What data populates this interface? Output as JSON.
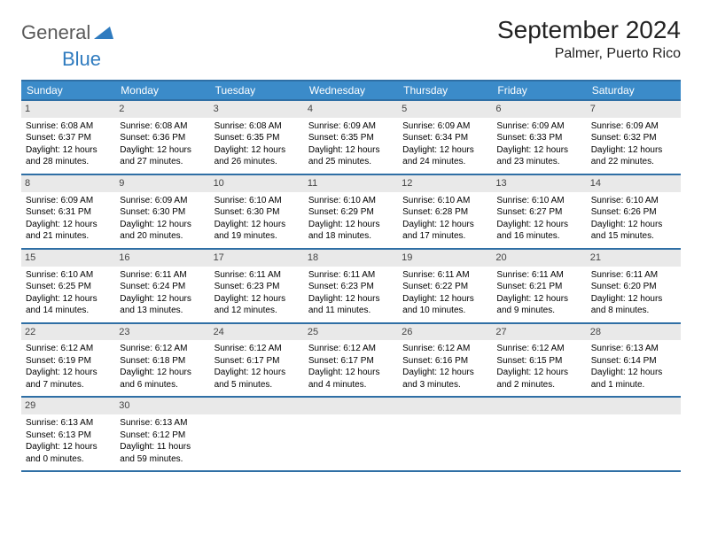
{
  "logo": {
    "text1": "General",
    "text2": "Blue"
  },
  "title": "September 2024",
  "location": "Palmer, Puerto Rico",
  "colors": {
    "header_bg": "#3b8bc9",
    "border": "#2f6fa5",
    "daynum_bg": "#e9e9e9",
    "logo_gray": "#5a5a5a",
    "logo_blue": "#2f7bbf"
  },
  "fonts": {
    "title_size": 28,
    "location_size": 16,
    "dow_size": 12,
    "cell_size": 10
  },
  "days_of_week": [
    "Sunday",
    "Monday",
    "Tuesday",
    "Wednesday",
    "Thursday",
    "Friday",
    "Saturday"
  ],
  "weeks": [
    [
      {
        "n": "1",
        "sr": "6:08 AM",
        "ss": "6:37 PM",
        "dl": "12 hours and 28 minutes."
      },
      {
        "n": "2",
        "sr": "6:08 AM",
        "ss": "6:36 PM",
        "dl": "12 hours and 27 minutes."
      },
      {
        "n": "3",
        "sr": "6:08 AM",
        "ss": "6:35 PM",
        "dl": "12 hours and 26 minutes."
      },
      {
        "n": "4",
        "sr": "6:09 AM",
        "ss": "6:35 PM",
        "dl": "12 hours and 25 minutes."
      },
      {
        "n": "5",
        "sr": "6:09 AM",
        "ss": "6:34 PM",
        "dl": "12 hours and 24 minutes."
      },
      {
        "n": "6",
        "sr": "6:09 AM",
        "ss": "6:33 PM",
        "dl": "12 hours and 23 minutes."
      },
      {
        "n": "7",
        "sr": "6:09 AM",
        "ss": "6:32 PM",
        "dl": "12 hours and 22 minutes."
      }
    ],
    [
      {
        "n": "8",
        "sr": "6:09 AM",
        "ss": "6:31 PM",
        "dl": "12 hours and 21 minutes."
      },
      {
        "n": "9",
        "sr": "6:09 AM",
        "ss": "6:30 PM",
        "dl": "12 hours and 20 minutes."
      },
      {
        "n": "10",
        "sr": "6:10 AM",
        "ss": "6:30 PM",
        "dl": "12 hours and 19 minutes."
      },
      {
        "n": "11",
        "sr": "6:10 AM",
        "ss": "6:29 PM",
        "dl": "12 hours and 18 minutes."
      },
      {
        "n": "12",
        "sr": "6:10 AM",
        "ss": "6:28 PM",
        "dl": "12 hours and 17 minutes."
      },
      {
        "n": "13",
        "sr": "6:10 AM",
        "ss": "6:27 PM",
        "dl": "12 hours and 16 minutes."
      },
      {
        "n": "14",
        "sr": "6:10 AM",
        "ss": "6:26 PM",
        "dl": "12 hours and 15 minutes."
      }
    ],
    [
      {
        "n": "15",
        "sr": "6:10 AM",
        "ss": "6:25 PM",
        "dl": "12 hours and 14 minutes."
      },
      {
        "n": "16",
        "sr": "6:11 AM",
        "ss": "6:24 PM",
        "dl": "12 hours and 13 minutes."
      },
      {
        "n": "17",
        "sr": "6:11 AM",
        "ss": "6:23 PM",
        "dl": "12 hours and 12 minutes."
      },
      {
        "n": "18",
        "sr": "6:11 AM",
        "ss": "6:23 PM",
        "dl": "12 hours and 11 minutes."
      },
      {
        "n": "19",
        "sr": "6:11 AM",
        "ss": "6:22 PM",
        "dl": "12 hours and 10 minutes."
      },
      {
        "n": "20",
        "sr": "6:11 AM",
        "ss": "6:21 PM",
        "dl": "12 hours and 9 minutes."
      },
      {
        "n": "21",
        "sr": "6:11 AM",
        "ss": "6:20 PM",
        "dl": "12 hours and 8 minutes."
      }
    ],
    [
      {
        "n": "22",
        "sr": "6:12 AM",
        "ss": "6:19 PM",
        "dl": "12 hours and 7 minutes."
      },
      {
        "n": "23",
        "sr": "6:12 AM",
        "ss": "6:18 PM",
        "dl": "12 hours and 6 minutes."
      },
      {
        "n": "24",
        "sr": "6:12 AM",
        "ss": "6:17 PM",
        "dl": "12 hours and 5 minutes."
      },
      {
        "n": "25",
        "sr": "6:12 AM",
        "ss": "6:17 PM",
        "dl": "12 hours and 4 minutes."
      },
      {
        "n": "26",
        "sr": "6:12 AM",
        "ss": "6:16 PM",
        "dl": "12 hours and 3 minutes."
      },
      {
        "n": "27",
        "sr": "6:12 AM",
        "ss": "6:15 PM",
        "dl": "12 hours and 2 minutes."
      },
      {
        "n": "28",
        "sr": "6:13 AM",
        "ss": "6:14 PM",
        "dl": "12 hours and 1 minute."
      }
    ],
    [
      {
        "n": "29",
        "sr": "6:13 AM",
        "ss": "6:13 PM",
        "dl": "12 hours and 0 minutes."
      },
      {
        "n": "30",
        "sr": "6:13 AM",
        "ss": "6:12 PM",
        "dl": "11 hours and 59 minutes."
      },
      {
        "empty": true
      },
      {
        "empty": true
      },
      {
        "empty": true
      },
      {
        "empty": true
      },
      {
        "empty": true
      }
    ]
  ],
  "labels": {
    "sunrise": "Sunrise:",
    "sunset": "Sunset:",
    "daylight": "Daylight:"
  }
}
